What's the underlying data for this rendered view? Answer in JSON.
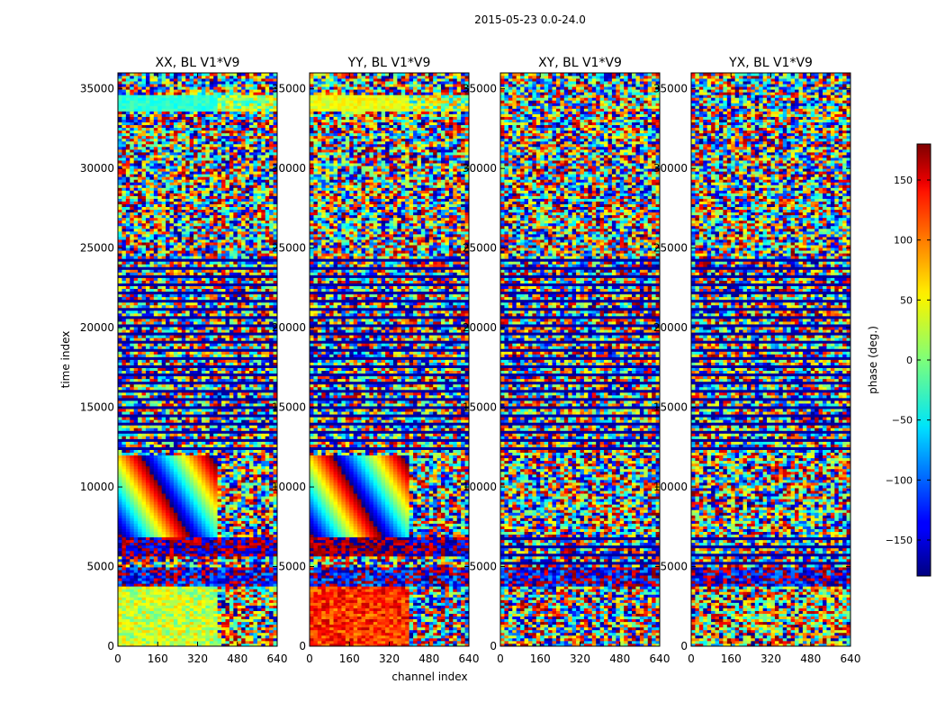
{
  "suptitle": "2015-05-23 0.0-24.0",
  "chart_data": [
    {
      "type": "heatmap",
      "title": "XX, BL V1*V9",
      "xlabel": "",
      "ylabel": "time index",
      "xlim": [
        0,
        640
      ],
      "ylim": [
        0,
        36000
      ],
      "xticks": [
        0,
        160,
        320,
        480,
        640
      ],
      "yticks": [
        0,
        5000,
        10000,
        15000,
        20000,
        25000,
        30000,
        35000
      ],
      "value_range": [
        -180,
        180
      ],
      "colormap": "jet",
      "regions": [
        {
          "t": [
            0,
            3700
          ],
          "ch": [
            0,
            400
          ],
          "phase": 25,
          "spread": 40
        },
        {
          "t": [
            0,
            3700
          ],
          "ch": [
            400,
            640
          ],
          "phase": 60,
          "spread": 160
        },
        {
          "t": [
            3700,
            4900
          ],
          "ch": [
            0,
            640
          ],
          "phase": -150,
          "spread": 80
        },
        {
          "t": [
            4900,
            5700
          ],
          "ch": [
            0,
            640
          ],
          "phase": 0,
          "spread": 180
        },
        {
          "t": [
            5700,
            6800
          ],
          "ch": [
            0,
            640
          ],
          "phase": -170,
          "spread": 60
        },
        {
          "t": [
            6800,
            12000
          ],
          "ch": [
            0,
            400
          ],
          "phase": 0,
          "spread": 180,
          "stripes": true
        },
        {
          "t": [
            6800,
            12000
          ],
          "ch": [
            400,
            640
          ],
          "phase": 0,
          "spread": 180
        },
        {
          "t": [
            12000,
            24500
          ],
          "ch": [
            0,
            640
          ],
          "phase": -160,
          "spread": 180,
          "bands": true
        },
        {
          "t": [
            24500,
            33600
          ],
          "ch": [
            0,
            640
          ],
          "phase": 0,
          "spread": 180
        },
        {
          "t": [
            33600,
            34600
          ],
          "ch": [
            0,
            400
          ],
          "phase": -30,
          "spread": 15
        },
        {
          "t": [
            33600,
            34600
          ],
          "ch": [
            400,
            640
          ],
          "phase": 10,
          "spread": 60
        },
        {
          "t": [
            34600,
            36000
          ],
          "ch": [
            0,
            640
          ],
          "phase": 0,
          "spread": 180
        }
      ]
    },
    {
      "type": "heatmap",
      "title": "YY, BL V1*V9",
      "xlabel": "channel index",
      "ylabel": "",
      "xlim": [
        0,
        640
      ],
      "ylim": [
        0,
        36000
      ],
      "xticks": [
        0,
        160,
        320,
        480,
        640
      ],
      "yticks": [
        0,
        5000,
        10000,
        15000,
        20000,
        25000,
        30000,
        35000
      ],
      "value_range": [
        -180,
        180
      ],
      "colormap": "jet",
      "regions": [
        {
          "t": [
            0,
            3700
          ],
          "ch": [
            0,
            400
          ],
          "phase": 120,
          "spread": 40
        },
        {
          "t": [
            0,
            3700
          ],
          "ch": [
            400,
            640
          ],
          "phase": -120,
          "spread": 160
        },
        {
          "t": [
            3700,
            4900
          ],
          "ch": [
            0,
            640
          ],
          "phase": -150,
          "spread": 80
        },
        {
          "t": [
            4900,
            5700
          ],
          "ch": [
            0,
            640
          ],
          "phase": 0,
          "spread": 180
        },
        {
          "t": [
            5700,
            6800
          ],
          "ch": [
            0,
            400
          ],
          "phase": 170,
          "spread": 30
        },
        {
          "t": [
            5700,
            6800
          ],
          "ch": [
            400,
            640
          ],
          "phase": -170,
          "spread": 60
        },
        {
          "t": [
            6800,
            12000
          ],
          "ch": [
            0,
            400
          ],
          "phase": 0,
          "spread": 180,
          "stripes": true
        },
        {
          "t": [
            6800,
            12000
          ],
          "ch": [
            400,
            640
          ],
          "phase": 0,
          "spread": 180
        },
        {
          "t": [
            12000,
            24500
          ],
          "ch": [
            0,
            640
          ],
          "phase": -160,
          "spread": 180,
          "bands": true
        },
        {
          "t": [
            24500,
            33600
          ],
          "ch": [
            0,
            640
          ],
          "phase": 0,
          "spread": 180
        },
        {
          "t": [
            33600,
            34600
          ],
          "ch": [
            0,
            400
          ],
          "phase": 40,
          "spread": 20
        },
        {
          "t": [
            33600,
            34600
          ],
          "ch": [
            400,
            640
          ],
          "phase": 10,
          "spread": 80
        },
        {
          "t": [
            34600,
            36000
          ],
          "ch": [
            0,
            640
          ],
          "phase": 0,
          "spread": 180
        }
      ]
    },
    {
      "type": "heatmap",
      "title": "XY, BL V1*V9",
      "xlabel": "",
      "ylabel": "",
      "xlim": [
        0,
        640
      ],
      "ylim": [
        0,
        36000
      ],
      "xticks": [
        0,
        160,
        320,
        480,
        640
      ],
      "yticks": [
        0,
        5000,
        10000,
        15000,
        20000,
        25000,
        30000,
        35000
      ],
      "value_range": [
        -180,
        180
      ],
      "colormap": "jet",
      "regions": [
        {
          "t": [
            0,
            3700
          ],
          "ch": [
            0,
            640
          ],
          "phase": 0,
          "spread": 180
        },
        {
          "t": [
            3700,
            4900
          ],
          "ch": [
            0,
            640
          ],
          "phase": -150,
          "spread": 80
        },
        {
          "t": [
            4900,
            6800
          ],
          "ch": [
            0,
            640
          ],
          "phase": -160,
          "spread": 180,
          "bands": true
        },
        {
          "t": [
            6800,
            12000
          ],
          "ch": [
            0,
            640
          ],
          "phase": 0,
          "spread": 180
        },
        {
          "t": [
            12000,
            24500
          ],
          "ch": [
            0,
            640
          ],
          "phase": -160,
          "spread": 180,
          "bands": true
        },
        {
          "t": [
            24500,
            36000
          ],
          "ch": [
            0,
            640
          ],
          "phase": 0,
          "spread": 180
        }
      ]
    },
    {
      "type": "heatmap",
      "title": "YX, BL V1*V9",
      "xlabel": "",
      "ylabel": "",
      "xlim": [
        0,
        640
      ],
      "ylim": [
        0,
        36000
      ],
      "xticks": [
        0,
        160,
        320,
        480,
        640
      ],
      "yticks": [
        0,
        5000,
        10000,
        15000,
        20000,
        25000,
        30000,
        35000
      ],
      "value_range": [
        -180,
        180
      ],
      "colormap": "jet",
      "regions": [
        {
          "t": [
            0,
            3700
          ],
          "ch": [
            0,
            640
          ],
          "phase": 60,
          "spread": 150
        },
        {
          "t": [
            3700,
            4900
          ],
          "ch": [
            0,
            640
          ],
          "phase": -150,
          "spread": 80
        },
        {
          "t": [
            4900,
            6800
          ],
          "ch": [
            0,
            640
          ],
          "phase": -160,
          "spread": 180,
          "bands": true
        },
        {
          "t": [
            6800,
            12000
          ],
          "ch": [
            0,
            640
          ],
          "phase": 0,
          "spread": 180
        },
        {
          "t": [
            12000,
            24500
          ],
          "ch": [
            0,
            640
          ],
          "phase": -160,
          "spread": 180,
          "bands": true
        },
        {
          "t": [
            24500,
            36000
          ],
          "ch": [
            0,
            640
          ],
          "phase": 0,
          "spread": 180
        }
      ]
    }
  ],
  "colorbar": {
    "label": "phase (deg.)",
    "range": [
      -180,
      180
    ],
    "ticks": [
      150,
      100,
      50,
      0,
      -50,
      -100,
      -150
    ],
    "tick_labels": [
      "150",
      "100",
      "50",
      "0",
      "−50",
      "−100",
      "−150"
    ]
  }
}
